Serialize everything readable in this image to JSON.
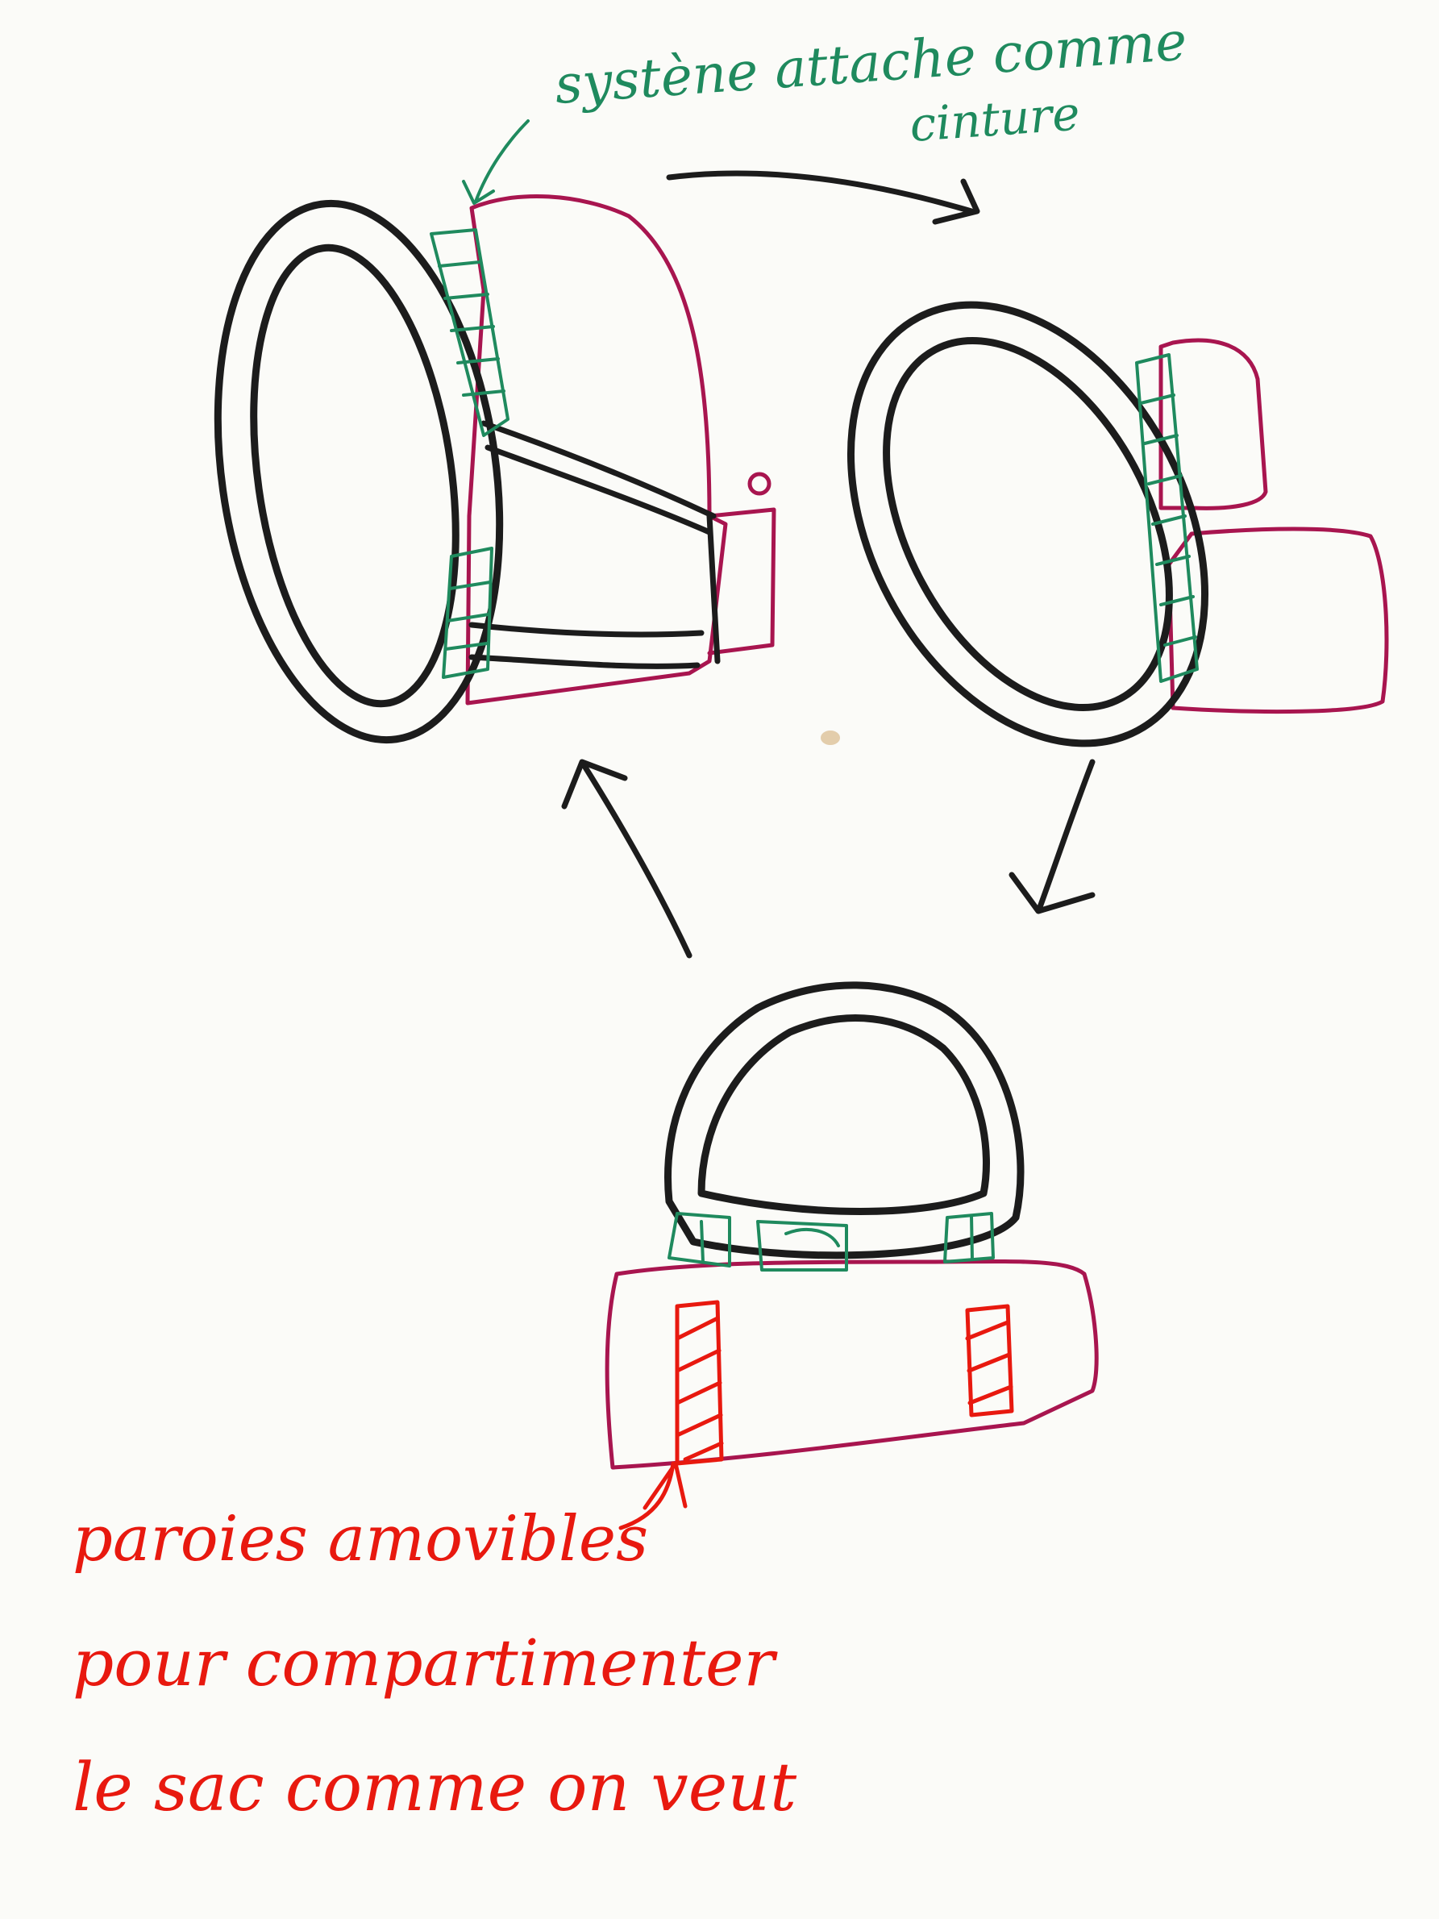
{
  "annotations": {
    "belt_line_1": "systène attache comme",
    "belt_line_2": "cinture",
    "walls_line_1": "paroies amovibles",
    "walls_line_2": "pour compartimenter",
    "walls_line_3": "le sac comme on veut"
  },
  "colors": {
    "paper": "#fbfbf8",
    "ring_outline": "#1c1c1c",
    "bag_outline": "#a8154f",
    "belt_attachment": "#1f8a5e",
    "removable_walls": "#e8190f"
  },
  "icons": [
    "arrow-top-to-right",
    "arrow-right-to-bottom",
    "arrow-bottom-to-left"
  ]
}
